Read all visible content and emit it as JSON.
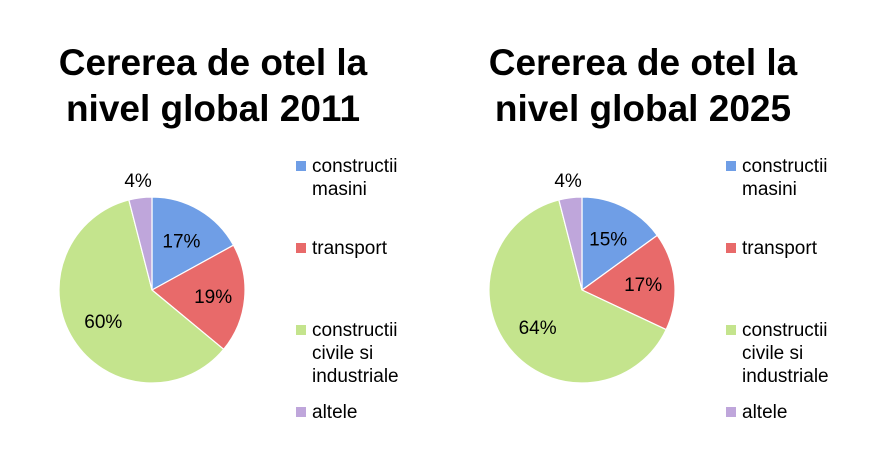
{
  "chart_data": [
    {
      "type": "pie",
      "title": "Cererea de otel la nivel global 2011",
      "title_lines": [
        "Cererea de otel la",
        "nivel global 2011"
      ],
      "categories": [
        "constructii masini",
        "transport",
        "constructii civile si industriale",
        "altele"
      ],
      "values": [
        17,
        19,
        60,
        4
      ],
      "data_labels": [
        "17%",
        "19%",
        "60%",
        "4%"
      ],
      "legend_placement": "right"
    },
    {
      "type": "pie",
      "title": "Cererea de otel la nivel global 2025",
      "title_lines": [
        "Cererea de otel la",
        "nivel global 2025"
      ],
      "categories": [
        "constructii masini",
        "transport",
        "constructii civile si industriale",
        "altele"
      ],
      "values": [
        15,
        17,
        64,
        4
      ],
      "data_labels": [
        "15%",
        "17%",
        "64%",
        "4%"
      ],
      "legend_placement": "right"
    }
  ],
  "legend": {
    "items": [
      {
        "lines": [
          "constructii",
          "masini"
        ],
        "color": "#6f9ee6"
      },
      {
        "lines": [
          "transport"
        ],
        "color": "#e86a6a"
      },
      {
        "lines": [
          "constructii",
          "civile si",
          "industriale"
        ],
        "color": "#c4e48d"
      },
      {
        "lines": [
          "altele"
        ],
        "color": "#bfa6db"
      }
    ]
  },
  "colors": [
    "#6f9ee6",
    "#e86a6a",
    "#c4e48d",
    "#bfa6db"
  ]
}
